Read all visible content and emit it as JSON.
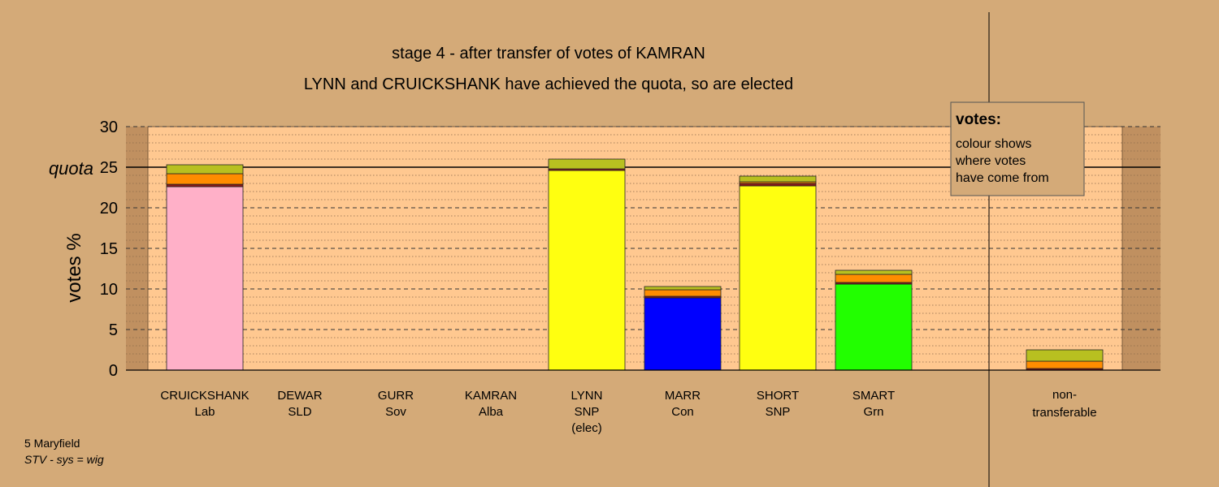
{
  "chart_data": {
    "type": "bar",
    "stacked": true,
    "title": "stage 4 - after transfer of votes of KAMRAN",
    "subtitle": "LYNN and CRUICKSHANK have achieved the quota, so are elected",
    "ylabel": "votes %",
    "ylim": [
      0,
      30
    ],
    "yticks": [
      0,
      5,
      10,
      15,
      20,
      25,
      30
    ],
    "quota": 25,
    "quota_label": "quota",
    "grid": true,
    "categories": [
      {
        "name": "CRUICKSHANK",
        "party": "Lab"
      },
      {
        "name": "DEWAR",
        "party": "SLD"
      },
      {
        "name": "GURR",
        "party": "Sov"
      },
      {
        "name": "KAMRAN",
        "party": "Alba"
      },
      {
        "name": "LYNN",
        "party": "SNP",
        "note": "(elec)"
      },
      {
        "name": "MARR",
        "party": "Con"
      },
      {
        "name": "SHORT",
        "party": "SNP"
      },
      {
        "name": "SMART",
        "party": "Grn"
      }
    ],
    "bars": [
      {
        "category": "CRUICKSHANK",
        "segments": [
          {
            "value": 22.6,
            "color": "#ffb0c8"
          },
          {
            "value": 0.3,
            "color": "#8b1a1a"
          },
          {
            "value": 1.3,
            "color": "#ff8c00"
          },
          {
            "value": 1.1,
            "color": "#b8c020"
          }
        ]
      },
      {
        "category": "DEWAR",
        "segments": []
      },
      {
        "category": "GURR",
        "segments": []
      },
      {
        "category": "KAMRAN",
        "segments": []
      },
      {
        "category": "LYNN",
        "segments": [
          {
            "value": 24.6,
            "color": "#ffff10"
          },
          {
            "value": 0.2,
            "color": "#8b1a1a"
          },
          {
            "value": 1.2,
            "color": "#b8c020"
          }
        ]
      },
      {
        "category": "MARR",
        "segments": [
          {
            "value": 8.9,
            "color": "#0000ff"
          },
          {
            "value": 0.2,
            "color": "#8b1a1a"
          },
          {
            "value": 0.8,
            "color": "#ff8c00"
          },
          {
            "value": 0.4,
            "color": "#b8c020"
          }
        ]
      },
      {
        "category": "SHORT",
        "segments": [
          {
            "value": 22.7,
            "color": "#ffff10"
          },
          {
            "value": 0.3,
            "color": "#8b1a1a"
          },
          {
            "value": 0.2,
            "color": "#ff8c00"
          },
          {
            "value": 0.7,
            "color": "#b8c020"
          }
        ]
      },
      {
        "category": "SMART",
        "segments": [
          {
            "value": 10.6,
            "color": "#22ff00"
          },
          {
            "value": 0.2,
            "color": "#8b1a1a"
          },
          {
            "value": 1.0,
            "color": "#ff8c00"
          },
          {
            "value": 0.5,
            "color": "#b8c020"
          }
        ]
      }
    ],
    "nontransferable": {
      "label_line1": "non-",
      "label_line2": "transferable",
      "segments": [
        {
          "value": 0.2,
          "color": "#8b1a1a"
        },
        {
          "value": 0.9,
          "color": "#ff8c00"
        },
        {
          "value": 1.4,
          "color": "#b8c020"
        }
      ]
    },
    "legend": {
      "title": "votes:",
      "lines": [
        "colour shows",
        "where votes",
        "have come from"
      ],
      "placement": "top-right"
    }
  },
  "footer": {
    "ward": "5 Maryfield",
    "system": "STV - sys = wig"
  },
  "colors": {
    "background": "#d4aa78",
    "plot_area": "#ffc890",
    "edge_strip": "#c09060"
  }
}
